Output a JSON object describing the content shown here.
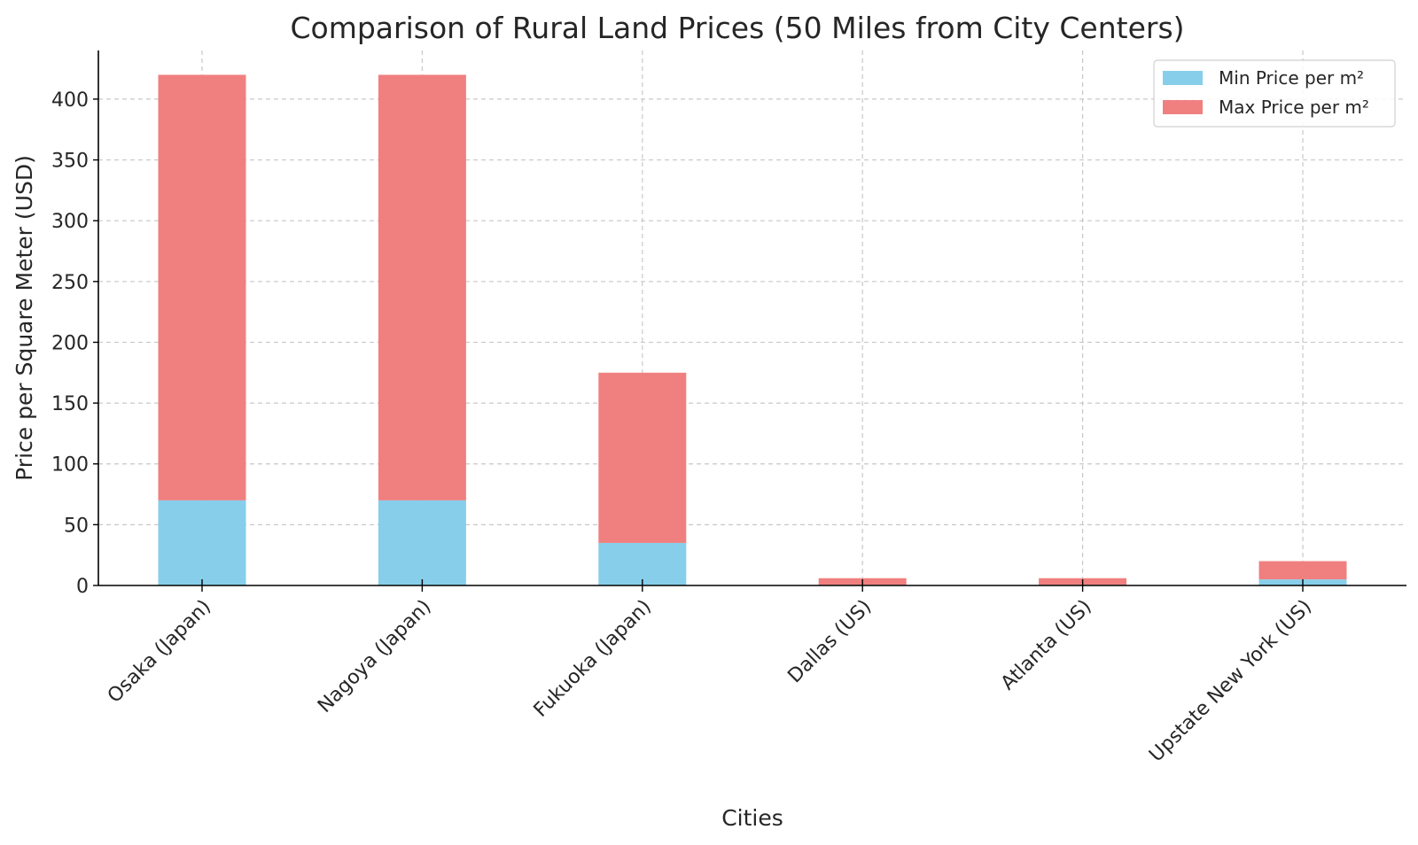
{
  "chart_data": {
    "type": "bar",
    "stacked": true,
    "title": "Comparison of Rural Land Prices (50 Miles from City Centers)",
    "xlabel": "Cities",
    "ylabel": "Price per Square Meter (USD)",
    "categories": [
      "Osaka (Japan)",
      "Nagoya (Japan)",
      "Fukuoka (Japan)",
      "Dallas (US)",
      "Atlanta (US)",
      "Upstate New York (US)"
    ],
    "series": [
      {
        "name": "Min Price per m²",
        "color": "#87ceeb",
        "values": [
          70,
          70,
          35,
          0.5,
          0.5,
          5
        ]
      },
      {
        "name": "Max Price per m²",
        "color": "#f08080",
        "values": [
          350,
          350,
          140,
          5.5,
          5.5,
          15
        ]
      }
    ],
    "ylim": [
      0,
      440
    ],
    "yticks": [
      0,
      50,
      100,
      150,
      200,
      250,
      300,
      350,
      400
    ],
    "grid": true,
    "legend": "top-right"
  }
}
